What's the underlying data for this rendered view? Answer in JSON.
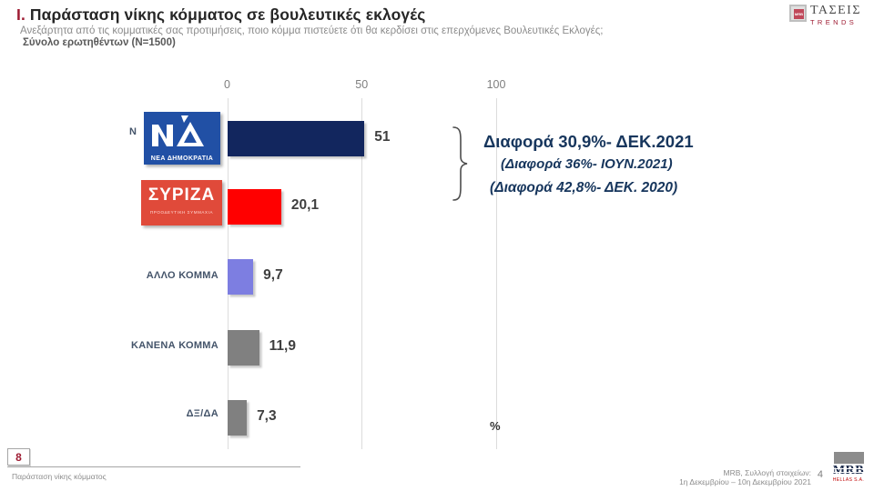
{
  "header": {
    "title_prefix": "Ι.",
    "title": "Παράσταση νίκης κόμματος σε βουλευτικές εκλογές",
    "subtitle": "Ανεξάρτητα από τις κομματικές σας προτιμήσεις, ποιο κόμμα πιστεύετε ότι θα κερδίσει στις επερχόμενες Βουλευτικές Εκλογές;",
    "sample": "Σύνολο ερωτηθέντων (N=1500)"
  },
  "brand": {
    "name": "ΤΑΣΕΙΣ",
    "sub": "TRENDS",
    "icon_label": "MRB"
  },
  "chart_data": {
    "type": "bar",
    "orientation": "horizontal",
    "categories": [
      "ΝΔ",
      "ΣΥΡΙΖΑ",
      "ΑΛΛΟ ΚΟΜΜΑ",
      "ΚΑΝΕΝΑ ΚΟΜΜΑ",
      "ΔΞ/ΔΑ"
    ],
    "values": [
      51,
      20.1,
      9.7,
      11.9,
      7.3
    ],
    "value_labels": [
      "51",
      "20,1",
      "9,7",
      "11,9",
      "7,3"
    ],
    "bar_colors": [
      "#12265e",
      "#ff0000",
      "#7d7ee1",
      "#808080",
      "#808080"
    ],
    "x_ticks": [
      0,
      50,
      100
    ],
    "xlim": [
      0,
      100
    ],
    "unit_label": "%",
    "grid": "vertical-gridlines-at-ticks",
    "legend": "none"
  },
  "annotations": {
    "line1": "Διαφορά 30,9%- ΔΕΚ.2021",
    "line2": "(Διαφορά 36%- ΙΟΥΝ.2021)",
    "line3": "(Διαφορά 42,8%- ΔΕΚ. 2020)"
  },
  "logos": {
    "nd": {
      "partial_label": "Ν",
      "caption": "ΝΕΑ ΔΗΜΟΚΡΑΤΙΑ"
    },
    "syriza": {
      "name": "ΣΥΡΙΖΑ",
      "caption": "ΠΡΟΟΔΕΥΤΙΚΗ ΣΥΜΜΑΧΙΑ"
    }
  },
  "footer": {
    "page_box": "8",
    "caption": "Παράσταση νίκης κόμματος",
    "source_line1": "MRB, Συλλογή στοιχείων:",
    "source_line2": "1η Δεκεμβρίου –  10η Δεκεμβρίου 2021",
    "page_number": "4",
    "mrb_logo": {
      "text": "MRB",
      "sub": "HELLAS S.A."
    }
  }
}
